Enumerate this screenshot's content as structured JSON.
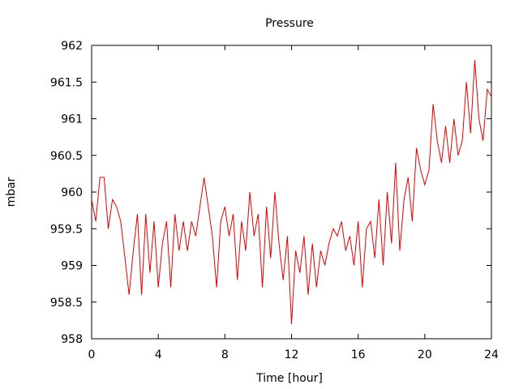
{
  "chart_data": {
    "type": "line",
    "title": "Pressure",
    "xlabel": "Time [hour]",
    "ylabel": "mbar",
    "xlim": [
      0,
      24
    ],
    "ylim": [
      958,
      962
    ],
    "x_ticks": [
      "0",
      "4",
      "8",
      "12",
      "16",
      "20",
      "24"
    ],
    "y_ticks": [
      "958",
      "958.5",
      "959",
      "959.5",
      "960",
      "960.5",
      "961",
      "961.5",
      "962"
    ],
    "grid": false,
    "legend": "none",
    "series": [
      {
        "color": "#e00000",
        "x": [
          0,
          0.25,
          0.5,
          0.75,
          1,
          1.25,
          1.5,
          1.75,
          2,
          2.25,
          2.5,
          2.75,
          3,
          3.25,
          3.5,
          3.75,
          4,
          4.25,
          4.5,
          4.75,
          5,
          5.25,
          5.5,
          5.75,
          6,
          6.25,
          6.5,
          6.75,
          7,
          7.25,
          7.5,
          7.75,
          8,
          8.25,
          8.5,
          8.75,
          9,
          9.25,
          9.5,
          9.75,
          10,
          10.25,
          10.5,
          10.75,
          11,
          11.25,
          11.5,
          11.75,
          12,
          12.25,
          12.5,
          12.75,
          13,
          13.25,
          13.5,
          13.75,
          14,
          14.25,
          14.5,
          14.75,
          15,
          15.25,
          15.5,
          15.75,
          16,
          16.25,
          16.5,
          16.75,
          17,
          17.25,
          17.5,
          17.75,
          18,
          18.25,
          18.5,
          18.75,
          19,
          19.25,
          19.5,
          19.75,
          20,
          20.25,
          20.5,
          20.75,
          21,
          21.25,
          21.5,
          21.75,
          22,
          22.25,
          22.5,
          22.75,
          23,
          23.25,
          23.5,
          23.75,
          24
        ],
        "values": [
          959.9,
          959.6,
          960.2,
          960.2,
          959.5,
          959.9,
          959.8,
          959.6,
          959.1,
          958.6,
          959.2,
          959.7,
          958.6,
          959.7,
          958.9,
          959.6,
          958.7,
          959.3,
          959.6,
          958.7,
          959.7,
          959.2,
          959.6,
          959.2,
          959.6,
          959.4,
          959.8,
          960.2,
          959.8,
          959.4,
          958.7,
          959.6,
          959.8,
          959.4,
          959.7,
          958.8,
          959.6,
          959.2,
          960.0,
          959.4,
          959.7,
          958.7,
          959.8,
          959.1,
          960.0,
          959.3,
          958.8,
          959.4,
          958.2,
          959.2,
          958.9,
          959.4,
          958.6,
          959.3,
          958.7,
          959.2,
          959.0,
          959.3,
          959.5,
          959.4,
          959.6,
          959.2,
          959.4,
          959.0,
          959.6,
          958.7,
          959.5,
          959.6,
          959.1,
          959.9,
          959.0,
          960.0,
          959.3,
          960.4,
          959.2,
          959.9,
          960.2,
          959.6,
          960.6,
          960.3,
          960.1,
          960.3,
          961.2,
          960.7,
          960.4,
          960.9,
          960.4,
          961.0,
          960.5,
          960.7,
          961.5,
          960.8,
          961.8,
          961.0,
          960.7,
          961.4,
          961.3
        ]
      }
    ]
  }
}
